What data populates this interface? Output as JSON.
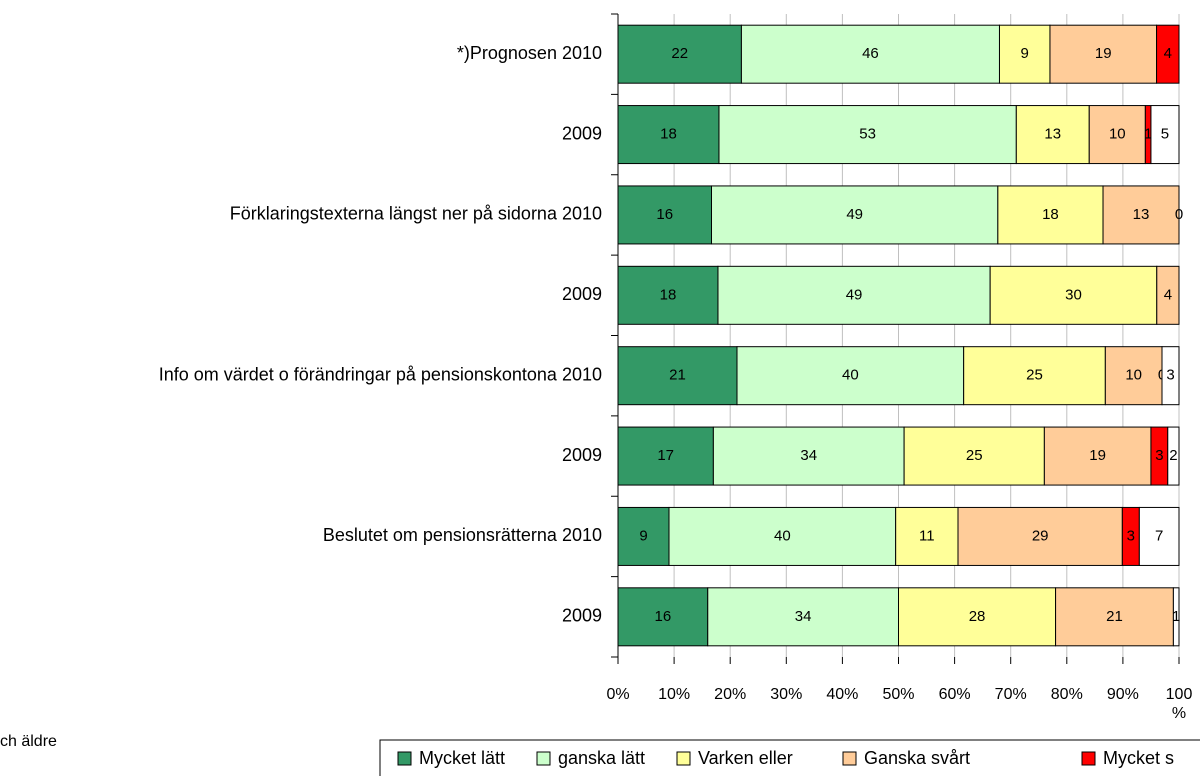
{
  "chart_data": {
    "type": "bar",
    "orientation": "horizontal",
    "stack": "percent",
    "categories": [
      "*)Prognosen 2010",
      "2009",
      "Förklaringstexterna längst ner på sidorna 2010",
      "2009",
      "Info om värdet o förändringar på pensionskontona 2010",
      "2009",
      "Beslutet om pensionsrätterna 2010",
      "2009"
    ],
    "series": [
      {
        "name": "Mycket lätt",
        "color": "#339966",
        "values": [
          22,
          18,
          16,
          18,
          21,
          17,
          9,
          16
        ]
      },
      {
        "name": "ganska lätt",
        "color": "#ccffcc",
        "values": [
          46,
          53,
          49,
          49,
          40,
          34,
          40,
          34
        ]
      },
      {
        "name": "Varken eller",
        "color": "#ffff99",
        "values": [
          9,
          13,
          18,
          30,
          25,
          25,
          11,
          28
        ]
      },
      {
        "name": "Ganska svårt",
        "color": "#ffcc99",
        "values": [
          19,
          10,
          13,
          4,
          10,
          19,
          29,
          21
        ]
      },
      {
        "name": "Mycket s",
        "color": "#ff0000",
        "values": [
          4,
          1,
          0,
          null,
          0,
          3,
          3,
          null
        ]
      },
      {
        "color": "#ffffff",
        "values": [
          null,
          5,
          null,
          null,
          3,
          2,
          7,
          1
        ]
      }
    ],
    "xlim": [
      0,
      100
    ],
    "xticks": [
      {
        "value": 0,
        "label": "0%"
      },
      {
        "value": 10,
        "label": "10%"
      },
      {
        "value": 20,
        "label": "20%"
      },
      {
        "value": 30,
        "label": "30%"
      },
      {
        "value": 40,
        "label": "40%"
      },
      {
        "value": 50,
        "label": "50%"
      },
      {
        "value": 60,
        "label": "60%"
      },
      {
        "value": 70,
        "label": "70%"
      },
      {
        "value": 80,
        "label": "80%"
      },
      {
        "value": 90,
        "label": "90%"
      },
      {
        "value": 100,
        "label": "100 %"
      }
    ],
    "grid": true,
    "legend": "bottom",
    "note": "ch äldre"
  }
}
